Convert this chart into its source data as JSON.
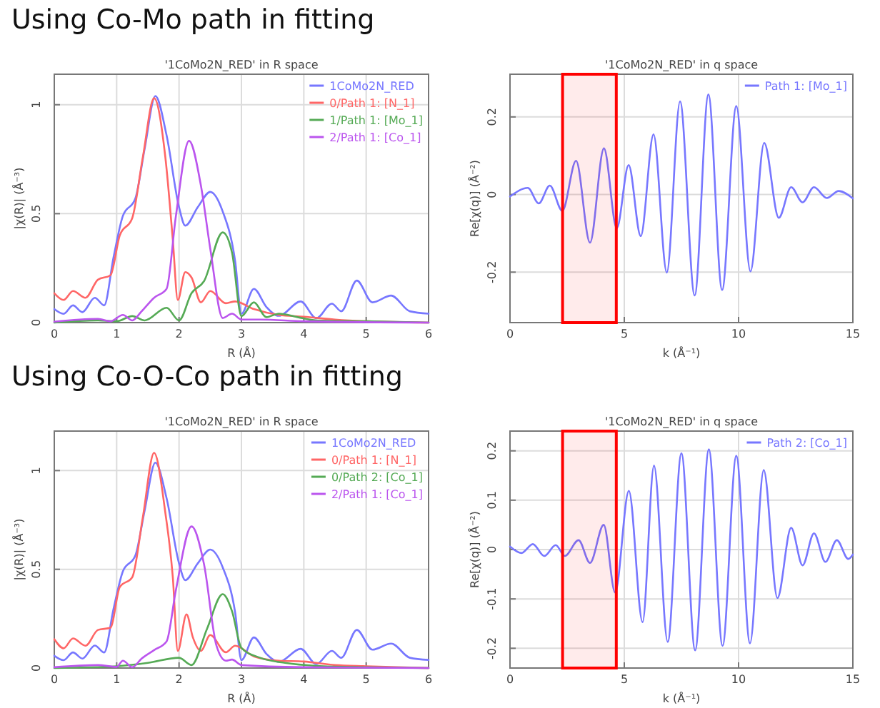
{
  "chart_data": [
    {
      "type": "line",
      "title": "'1CoMo2N_RED' in R space",
      "annotations": [
        "Using Co-Mo path in fitting"
      ],
      "xlabel": "R (Å)",
      "ylabel": "|χ(R)| (Å⁻³)",
      "xlim": [
        0,
        6
      ],
      "xticks": [
        0,
        1,
        2,
        3,
        4,
        5,
        6
      ],
      "ylim": [
        0,
        1.14
      ],
      "yticks": [
        0,
        0.5,
        1
      ],
      "grid": true,
      "legend": "top right",
      "marker": "none",
      "line_style": "solid",
      "series": [
        {
          "name": "1CoMo2N_RED",
          "color": "#7777ff",
          "x": [
            0,
            0.15,
            0.3,
            0.45,
            0.65,
            0.8,
            0.95,
            1.1,
            1.3,
            1.45,
            1.62,
            1.8,
            2.0,
            2.1,
            2.3,
            2.5,
            2.7,
            2.9,
            3.0,
            3.2,
            3.4,
            3.6,
            3.95,
            4.2,
            4.45,
            4.6,
            4.85,
            5.1,
            5.4,
            5.7,
            6.0
          ],
          "values": [
            0.062,
            0.04,
            0.079,
            0.048,
            0.114,
            0.079,
            0.3,
            0.49,
            0.57,
            0.8,
            1.04,
            0.86,
            0.53,
            0.445,
            0.53,
            0.6,
            0.51,
            0.28,
            0.04,
            0.155,
            0.072,
            0.031,
            0.097,
            0.02,
            0.087,
            0.052,
            0.193,
            0.093,
            0.124,
            0.052,
            0.041
          ]
        },
        {
          "name": "0/Path 1: [N_1]",
          "color": "#ff6666",
          "x": [
            0,
            0.15,
            0.3,
            0.5,
            0.7,
            0.9,
            1.05,
            1.25,
            1.42,
            1.6,
            1.78,
            1.9,
            1.98,
            2.1,
            2.2,
            2.35,
            2.5,
            2.75,
            2.9,
            3.2,
            3.6,
            4,
            4.5,
            5,
            6
          ],
          "values": [
            0.135,
            0.104,
            0.145,
            0.114,
            0.197,
            0.217,
            0.4,
            0.48,
            0.76,
            1.03,
            0.76,
            0.38,
            0.104,
            0.232,
            0.207,
            0.093,
            0.145,
            0.089,
            0.097,
            0.062,
            0.035,
            0.027,
            0.014,
            0.006,
            0
          ]
        },
        {
          "name": "1/Path 1: [Mo_1]",
          "color": "#55aa55",
          "x": [
            0,
            0.7,
            1.0,
            1.25,
            1.45,
            1.8,
            2.0,
            2.2,
            2.4,
            2.7,
            2.85,
            3.0,
            3.2,
            3.4,
            3.6,
            3.9,
            4.2,
            5,
            6
          ],
          "values": [
            0,
            0.01,
            0.006,
            0.03,
            0.01,
            0.068,
            0.01,
            0.135,
            0.19,
            0.414,
            0.32,
            0.03,
            0.093,
            0.025,
            0.041,
            0.025,
            0.01,
            0.006,
            0
          ]
        },
        {
          "name": "2/Path 1: [Co_1]",
          "color": "#bb55ee",
          "x": [
            0,
            0.7,
            0.9,
            1.1,
            1.25,
            1.4,
            1.6,
            1.8,
            1.95,
            2.16,
            2.35,
            2.5,
            2.7,
            2.85,
            3.0,
            3.3,
            4,
            6
          ],
          "values": [
            0.004,
            0.017,
            0.006,
            0.035,
            0.01,
            0.052,
            0.114,
            0.155,
            0.49,
            0.834,
            0.63,
            0.34,
            0.021,
            0.041,
            0.014,
            0.014,
            0.006,
            0
          ]
        }
      ]
    },
    {
      "type": "line",
      "title": "'1CoMo2N_RED' in q space",
      "xlabel": "k (Å⁻¹)",
      "ylabel": "Re[χ(q)] (Å⁻²)",
      "xlim": [
        0,
        15
      ],
      "xticks": [
        0,
        5,
        10,
        15
      ],
      "ylim": [
        -0.33,
        0.31
      ],
      "yticks": [
        -0.2,
        0,
        0.2
      ],
      "grid": true,
      "legend": "top right",
      "marker": "none",
      "line_style": "solid",
      "bands": [
        {
          "axis": "x",
          "from": 2.3,
          "to": 4.65,
          "color": "#ff0000"
        }
      ],
      "series": [
        {
          "name": "Path 1: [Mo_1]",
          "color": "#7777ff",
          "x": [
            0,
            0.78,
            1.26,
            1.74,
            2.29,
            2.89,
            3.5,
            4.11,
            4.67,
            5.19,
            5.72,
            6.28,
            6.86,
            7.44,
            8.08,
            8.68,
            9.28,
            9.9,
            10.52,
            11.12,
            11.76,
            12.3,
            12.8,
            13.3,
            13.86,
            14.38,
            15
          ],
          "values": [
            -0.005,
            0.017,
            -0.023,
            0.023,
            -0.042,
            0.087,
            -0.124,
            0.119,
            -0.087,
            0.076,
            -0.107,
            0.155,
            -0.201,
            0.24,
            -0.26,
            0.258,
            -0.246,
            0.228,
            -0.198,
            0.133,
            -0.06,
            0.019,
            -0.02,
            0.019,
            -0.009,
            0.009,
            -0.01
          ]
        }
      ]
    },
    {
      "type": "line",
      "title": "'1CoMo2N_RED' in R space",
      "annotations": [
        "Using Co-O-Co path in fitting"
      ],
      "xlabel": "R (Å)",
      "ylabel": "|χ(R)| (Å⁻³)",
      "xlim": [
        0,
        6
      ],
      "xticks": [
        0,
        1,
        2,
        3,
        4,
        5,
        6
      ],
      "ylim": [
        0,
        1.2
      ],
      "yticks": [
        0,
        0.5,
        1
      ],
      "grid": true,
      "legend": "top right",
      "marker": "none",
      "line_style": "solid",
      "series": [
        {
          "name": "1CoMo2N_RED",
          "color": "#7777ff",
          "x": [
            0,
            0.15,
            0.3,
            0.45,
            0.65,
            0.8,
            0.95,
            1.1,
            1.3,
            1.45,
            1.62,
            1.8,
            2.0,
            2.1,
            2.3,
            2.5,
            2.7,
            2.9,
            3.0,
            3.2,
            3.4,
            3.6,
            3.95,
            4.2,
            4.45,
            4.6,
            4.85,
            5.1,
            5.4,
            5.7,
            6.0
          ],
          "values": [
            0.062,
            0.04,
            0.079,
            0.048,
            0.114,
            0.079,
            0.3,
            0.49,
            0.57,
            0.8,
            1.04,
            0.86,
            0.53,
            0.445,
            0.53,
            0.6,
            0.51,
            0.28,
            0.04,
            0.155,
            0.072,
            0.031,
            0.097,
            0.02,
            0.087,
            0.052,
            0.193,
            0.093,
            0.124,
            0.052,
            0.041
          ]
        },
        {
          "name": "0/Path 1: [N_1]",
          "color": "#ff6666",
          "x": [
            0,
            0.15,
            0.3,
            0.5,
            0.7,
            0.9,
            1.05,
            1.25,
            1.42,
            1.6,
            1.78,
            1.9,
            1.98,
            2.12,
            2.22,
            2.35,
            2.5,
            2.75,
            2.9,
            3.2,
            3.6,
            4,
            4.5,
            5,
            6
          ],
          "values": [
            0.146,
            0.1,
            0.15,
            0.113,
            0.193,
            0.204,
            0.41,
            0.46,
            0.765,
            1.09,
            0.787,
            0.46,
            0.087,
            0.272,
            0.157,
            0.087,
            0.167,
            0.08,
            0.113,
            0.059,
            0.037,
            0.033,
            0.015,
            0.009,
            0
          ]
        },
        {
          "name": "0/Path 2: [Co_1]",
          "color": "#55aa55",
          "x": [
            0,
            1.0,
            1.5,
            2.0,
            2.2,
            2.45,
            2.7,
            2.85,
            3.0,
            3.3,
            3.7,
            4.2,
            5,
            6
          ],
          "values": [
            0,
            0.009,
            0.026,
            0.052,
            0.015,
            0.2,
            0.374,
            0.287,
            0.102,
            0.052,
            0.026,
            0.011,
            0.004,
            0
          ]
        },
        {
          "name": "2/Path 1: [Co_1]",
          "color": "#bb55ee",
          "x": [
            0,
            0.7,
            1.0,
            1.1,
            1.25,
            1.4,
            1.6,
            1.8,
            1.95,
            2.2,
            2.4,
            2.6,
            2.75,
            2.85,
            3.0,
            4,
            6
          ],
          "values": [
            0.004,
            0.015,
            0.006,
            0.037,
            0.004,
            0.048,
            0.091,
            0.135,
            0.396,
            0.717,
            0.526,
            0.113,
            0.037,
            0.043,
            0.015,
            0.004,
            0
          ]
        }
      ]
    },
    {
      "type": "line",
      "title": "'1CoMo2N_RED' in q space",
      "xlabel": "k (Å⁻¹)",
      "ylabel": "Re[χ(q)] (Å⁻²)",
      "xlim": [
        0,
        15
      ],
      "xticks": [
        0,
        5,
        10,
        15
      ],
      "ylim": [
        -0.24,
        0.24
      ],
      "yticks": [
        -0.2,
        -0.1,
        0,
        0.1,
        0.2
      ],
      "grid": true,
      "legend": "top right",
      "marker": "none",
      "line_style": "solid",
      "bands": [
        {
          "axis": "x",
          "from": 2.3,
          "to": 4.65,
          "color": "#ff0000"
        }
      ],
      "series": [
        {
          "name": "Path 2: [Co_1]",
          "color": "#7777ff",
          "x": [
            0,
            0.5,
            1.0,
            1.5,
            2.0,
            2.4,
            3.0,
            3.5,
            4.1,
            4.6,
            5.2,
            5.8,
            6.3,
            6.9,
            7.5,
            8.1,
            8.7,
            9.3,
            9.9,
            10.5,
            11.1,
            11.7,
            12.3,
            12.8,
            13.3,
            13.8,
            14.3,
            14.8,
            15
          ],
          "values": [
            0.006,
            -0.007,
            0.011,
            -0.013,
            0.009,
            -0.013,
            0.019,
            -0.027,
            0.05,
            -0.087,
            0.119,
            -0.147,
            0.17,
            -0.187,
            0.195,
            -0.204,
            0.203,
            -0.195,
            0.19,
            -0.19,
            0.161,
            -0.098,
            0.044,
            -0.032,
            0.033,
            -0.025,
            0.019,
            -0.019,
            -0.01
          ]
        }
      ]
    }
  ]
}
